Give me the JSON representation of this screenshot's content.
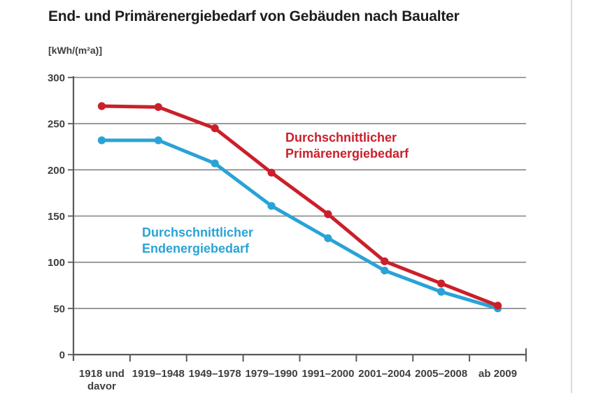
{
  "chart": {
    "title": "End- und Primärenergiebedarf von Gebäuden nach Baualter",
    "unit": "[kWh/(m²a)]",
    "legend": {
      "primary": [
        "Durchschnittlicher",
        "Primärenergiebedarf"
      ],
      "end": [
        "Durchschnittlicher",
        "Endenergiebedarf"
      ]
    },
    "colors": {
      "primary": "#cb1f2a",
      "end": "#29a3d7",
      "grid": "#828282",
      "axis": "#5a5a5a",
      "tick_text": "#3e3e3c",
      "title_text": "#1d1d1b",
      "page_edge": "#d9d9d9"
    }
  },
  "chart_data": {
    "type": "line",
    "title": "End- und Primärenergiebedarf von Gebäuden nach Baualter",
    "ylabel": "[kWh/(m²a)]",
    "xlabel": "",
    "categories": [
      "1918 und\ndavor",
      "1919–1948",
      "1949–1978",
      "1979–1990",
      "1991–2000",
      "2001–2004",
      "2005–2008",
      "ab 2009"
    ],
    "series": [
      {
        "id": "primary",
        "name": "Durchschnittlicher Primärenergiebedarf",
        "color": "#cb1f2a",
        "values": [
          269,
          268,
          245,
          197,
          152,
          101,
          77,
          53
        ]
      },
      {
        "id": "end",
        "name": "Durchschnittlicher Endenergiebedarf",
        "color": "#29a3d7",
        "values": [
          232,
          232,
          207,
          161,
          126,
          91,
          68,
          50
        ]
      }
    ],
    "ylim": [
      0,
      300
    ],
    "ytick_step": 50,
    "yticks": [
      0,
      50,
      100,
      150,
      200,
      250,
      300
    ],
    "grid": true,
    "legend_position": "inline-annotations"
  }
}
